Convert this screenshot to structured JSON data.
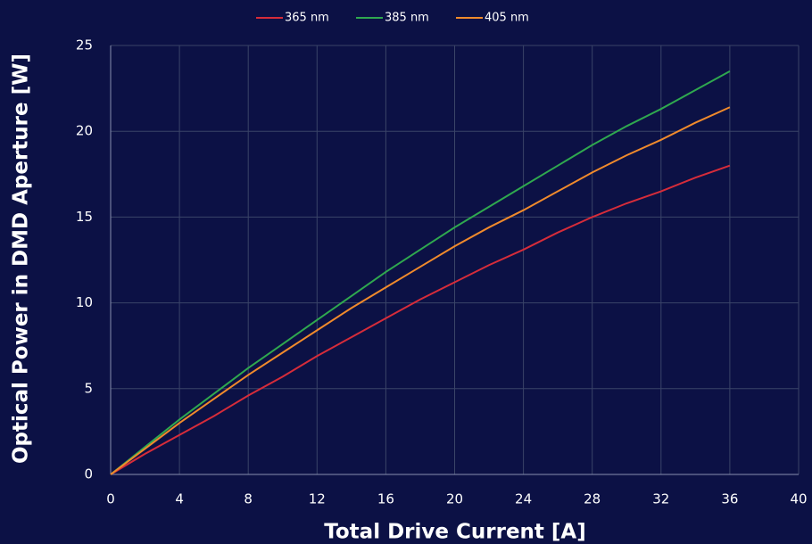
{
  "chart_data": {
    "type": "line",
    "xlabel": "Total Drive Current  [A]",
    "ylabel": "Optical Power in DMD Aperture [W]",
    "x": [
      0,
      2,
      4,
      6,
      8,
      10,
      12,
      14,
      16,
      18,
      20,
      22,
      24,
      26,
      28,
      30,
      32,
      34,
      36
    ],
    "series": [
      {
        "name": "365 nm",
        "color": "#d62c3a",
        "values": [
          0,
          1.2,
          2.3,
          3.4,
          4.6,
          5.7,
          6.9,
          8.0,
          9.1,
          10.2,
          11.2,
          12.2,
          13.1,
          14.1,
          15.0,
          15.8,
          16.5,
          17.3,
          18.0
        ]
      },
      {
        "name": "385 nm",
        "color": "#2fa84f",
        "values": [
          0,
          1.6,
          3.2,
          4.7,
          6.2,
          7.6,
          9.0,
          10.4,
          11.8,
          13.1,
          14.4,
          15.6,
          16.8,
          18.0,
          19.2,
          20.3,
          21.3,
          22.4,
          23.5
        ]
      },
      {
        "name": "405 nm",
        "color": "#f08a2c",
        "values": [
          0,
          1.5,
          3.0,
          4.4,
          5.8,
          7.1,
          8.4,
          9.7,
          10.9,
          12.1,
          13.3,
          14.4,
          15.4,
          16.5,
          17.6,
          18.6,
          19.5,
          20.5,
          21.4
        ]
      }
    ],
    "xlim": [
      0,
      40
    ],
    "xticks": [
      0,
      4,
      8,
      12,
      16,
      20,
      24,
      28,
      32,
      36,
      40
    ],
    "ylim": [
      0,
      25
    ],
    "yticks": [
      0,
      5,
      10,
      15,
      20,
      25
    ],
    "grid": true,
    "legend": "top"
  }
}
